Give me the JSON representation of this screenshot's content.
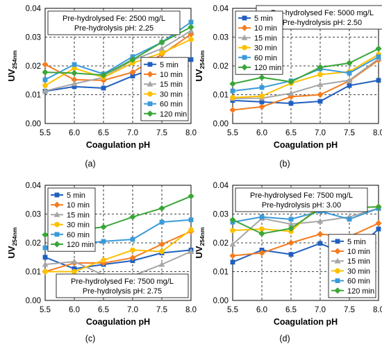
{
  "chart_data": [
    {
      "panel_label": "(a)",
      "type": "line",
      "ylabel": "UV254nm",
      "ylabel_main": "UV",
      "ylabel_sub": "254nm",
      "xlabel": "Coagulation pH",
      "x": [
        5.5,
        6.0,
        6.5,
        7.0,
        7.5,
        8.0
      ],
      "xlim": [
        5.5,
        8.0
      ],
      "ylim": [
        0,
        0.04
      ],
      "xticks": [
        "5.5",
        "6.0",
        "6.5",
        "7.0",
        "7.5",
        "8.0"
      ],
      "yticks": [
        "0.00",
        "0.01",
        "0.02",
        "0.03",
        "0.04"
      ],
      "grid": "dashed",
      "annotation": [
        "Pre-hydrolysed Fe: 2500 mg/L",
        "Pre-hydrolysis pH: 2.25"
      ],
      "annotation_position": "top-left",
      "legend_position": "bottom-right",
      "series": [
        {
          "name": "5 min",
          "color": "#1f5fbf",
          "marker": "square",
          "values": [
            0.0112,
            0.0128,
            0.0123,
            0.0165,
            0.02,
            0.0222
          ]
        },
        {
          "name": "10 min",
          "color": "#f47c20",
          "marker": "diamond",
          "values": [
            0.0205,
            0.0152,
            0.015,
            0.0178,
            0.024,
            0.031
          ]
        },
        {
          "name": "15 min",
          "color": "#a6a6a6",
          "marker": "triangle",
          "values": [
            0.0113,
            0.0138,
            0.016,
            0.022,
            0.026,
            0.0322
          ]
        },
        {
          "name": "30 min",
          "color": "#ffc000",
          "marker": "circle",
          "values": [
            0.0132,
            0.0192,
            0.016,
            0.021,
            0.0245,
            0.0292
          ]
        },
        {
          "name": "60 min",
          "color": "#3a9ad9",
          "marker": "square",
          "values": [
            0.0152,
            0.0205,
            0.0172,
            0.0232,
            0.0282,
            0.0352
          ]
        },
        {
          "name": "120 min",
          "color": "#3aa638",
          "marker": "diamond",
          "values": [
            0.0178,
            0.0175,
            0.0168,
            0.0222,
            0.0282,
            0.0335
          ]
        }
      ]
    },
    {
      "panel_label": "(b)",
      "type": "line",
      "ylabel": "UV254nm",
      "ylabel_main": "UV",
      "ylabel_sub": "254nm",
      "xlabel": "Coagulation pH",
      "x": [
        5.5,
        6.0,
        6.5,
        7.0,
        7.5,
        8.0
      ],
      "xlim": [
        5.5,
        8.0
      ],
      "ylim": [
        0,
        0.04
      ],
      "xticks": [
        "5.5",
        "6.0",
        "6.5",
        "7.0",
        "7.5",
        "8.0"
      ],
      "yticks": [
        "0.00",
        "0.01",
        "0.02",
        "0.03",
        "0.04"
      ],
      "grid": "dashed",
      "annotation": [
        "Pre-hydrolysed Fe: 5000 mg/L",
        "Pre-hydrolysis pH: 2.50"
      ],
      "annotation_position": "top-right",
      "legend_position": "top-left",
      "series": [
        {
          "name": "5 min",
          "color": "#1f5fbf",
          "marker": "square",
          "values": [
            0.008,
            0.0075,
            0.007,
            0.0077,
            0.0132,
            0.015
          ]
        },
        {
          "name": "10 min",
          "color": "#f47c20",
          "marker": "diamond",
          "values": [
            0.0047,
            0.0058,
            0.0093,
            0.01,
            0.0148,
            0.022
          ]
        },
        {
          "name": "15 min",
          "color": "#a6a6a6",
          "marker": "triangle",
          "values": [
            0.0087,
            0.0088,
            0.0105,
            0.0135,
            0.015,
            0.0225
          ]
        },
        {
          "name": "30 min",
          "color": "#ffc000",
          "marker": "circle",
          "values": [
            0.009,
            0.0095,
            0.014,
            0.017,
            0.018,
            0.024
          ]
        },
        {
          "name": "60 min",
          "color": "#3a9ad9",
          "marker": "square",
          "values": [
            0.0113,
            0.0125,
            0.0148,
            0.019,
            0.0175,
            0.0232
          ]
        },
        {
          "name": "120 min",
          "color": "#3aa638",
          "marker": "diamond",
          "values": [
            0.0138,
            0.016,
            0.0145,
            0.0195,
            0.021,
            0.026
          ]
        }
      ]
    },
    {
      "panel_label": "(c)",
      "type": "line",
      "ylabel": "UV254nm",
      "ylabel_main": "UV",
      "ylabel_sub": "254nm",
      "xlabel": "Coagulation pH",
      "x": [
        5.5,
        6.0,
        6.5,
        7.0,
        7.5,
        8.0
      ],
      "xlim": [
        5.5,
        8.0
      ],
      "ylim": [
        0,
        0.04
      ],
      "xticks": [
        "5.5",
        "6.0",
        "6.5",
        "7.0",
        "7.5",
        "8.0"
      ],
      "yticks": [
        "0.00",
        "0.01",
        "0.02",
        "0.03",
        "0.04"
      ],
      "grid": "dashed",
      "annotation": [
        "Pre-hydrolysed Fe: 7500 mg/L",
        "Pre-hydrolysis pH: 2.75"
      ],
      "annotation_position": "bottom-right",
      "legend_position": "top-left",
      "series": [
        {
          "name": "5 min",
          "color": "#1f5fbf",
          "marker": "square",
          "values": [
            0.015,
            0.011,
            0.0125,
            0.0138,
            0.0165,
            0.0175
          ]
        },
        {
          "name": "10 min",
          "color": "#f47c20",
          "marker": "diamond",
          "values": [
            0.01,
            0.013,
            0.013,
            0.0148,
            0.0195,
            0.024
          ]
        },
        {
          "name": "15 min",
          "color": "#a6a6a6",
          "marker": "triangle",
          "values": [
            0.0125,
            0.0135,
            0.0088,
            0.0085,
            0.0125,
            0.017
          ]
        },
        {
          "name": "30 min",
          "color": "#ffc000",
          "marker": "circle",
          "values": [
            0.01,
            0.01,
            0.014,
            0.0175,
            0.017,
            0.0245
          ]
        },
        {
          "name": "60 min",
          "color": "#3a9ad9",
          "marker": "square",
          "values": [
            0.0183,
            0.0195,
            0.0205,
            0.0212,
            0.0272,
            0.028
          ]
        },
        {
          "name": "120 min",
          "color": "#3aa638",
          "marker": "diamond",
          "values": [
            0.0228,
            0.0243,
            0.0255,
            0.029,
            0.032,
            0.0362
          ]
        }
      ]
    },
    {
      "panel_label": "(d)",
      "type": "line",
      "ylabel": "UV254nm",
      "ylabel_main": "UV",
      "ylabel_sub": "254nm",
      "xlabel": "Coagulation pH",
      "x": [
        5.5,
        6.0,
        6.5,
        7.0,
        7.5,
        8.0
      ],
      "xlim": [
        5.5,
        8.0
      ],
      "ylim": [
        0,
        0.04
      ],
      "xticks": [
        "5.5",
        "6.0",
        "6.5",
        "7.0",
        "7.5",
        "8.0"
      ],
      "yticks": [
        "0.00",
        "0.01",
        "0.02",
        "0.03",
        "0.04"
      ],
      "grid": "dashed",
      "annotation": [
        "Pre-hydrolysed Fe: 7500 mg/L",
        "Pre-hydrolysis pH: 3.00"
      ],
      "annotation_position": "top-left",
      "legend_position": "bottom-right",
      "series": [
        {
          "name": "5 min",
          "color": "#1f5fbf",
          "marker": "square",
          "values": [
            0.0133,
            0.0175,
            0.016,
            0.0198,
            0.0155,
            0.0248
          ]
        },
        {
          "name": "10 min",
          "color": "#f47c20",
          "marker": "diamond",
          "values": [
            0.0155,
            0.0165,
            0.02,
            0.023,
            0.0222,
            0.0268
          ]
        },
        {
          "name": "15 min",
          "color": "#a6a6a6",
          "marker": "triangle",
          "values": [
            0.0195,
            0.0285,
            0.0265,
            0.0275,
            0.029,
            0.032
          ]
        },
        {
          "name": "30 min",
          "color": "#ffc000",
          "marker": "circle",
          "values": [
            0.0243,
            0.0248,
            0.024,
            0.0332,
            0.0322,
            0.0325
          ]
        },
        {
          "name": "60 min",
          "color": "#3a9ad9",
          "marker": "square",
          "values": [
            0.0272,
            0.029,
            0.0282,
            0.031,
            0.0282,
            0.032
          ]
        },
        {
          "name": "120 min",
          "color": "#3aa638",
          "marker": "diamond",
          "values": [
            0.028,
            0.0232,
            0.025,
            0.032,
            0.0322,
            0.0325
          ]
        }
      ]
    }
  ]
}
